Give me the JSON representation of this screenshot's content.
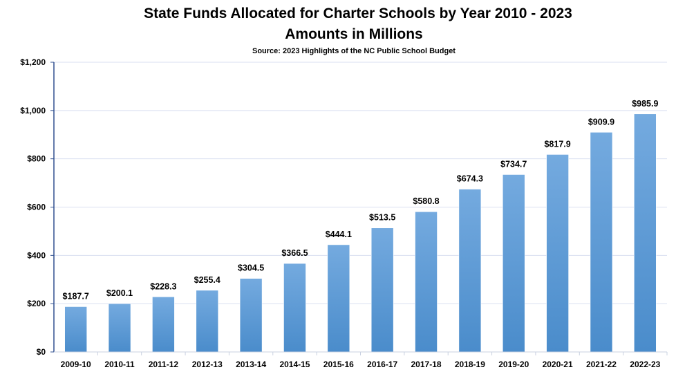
{
  "chart_data": {
    "type": "bar",
    "title": "State Funds Allocated for Charter Schools by Year 2010 - 2023",
    "subtitle": "Amounts in Millions",
    "source": "Source: 2023 Highlights of the NC Public School Budget",
    "xlabel": "",
    "ylabel": "",
    "categories": [
      "2009-10",
      "2010-11",
      "2011-12",
      "2012-13",
      "2013-14",
      "2014-15",
      "2015-16",
      "2016-17",
      "2017-18",
      "2018-19",
      "2019-20",
      "2020-21",
      "2021-22",
      "2022-23"
    ],
    "values": [
      187.7,
      200.1,
      228.3,
      255.4,
      304.5,
      366.5,
      444.1,
      513.5,
      580.8,
      674.3,
      734.7,
      817.9,
      909.9,
      985.9
    ],
    "data_labels": [
      "$187.7",
      "$200.1",
      "$228.3",
      "$255.4",
      "$304.5",
      "$366.5",
      "$444.1",
      "$513.5",
      "$580.8",
      "$674.3",
      "$734.7",
      "$817.9",
      "$909.9",
      "$985.9"
    ],
    "ylim": [
      0,
      1200
    ],
    "yticks": [
      0,
      200,
      400,
      600,
      800,
      1000,
      1200
    ],
    "ytick_labels": [
      "$0",
      "$200",
      "$400",
      "$600",
      "$800",
      "$1,000",
      "$1,200"
    ],
    "grid": true,
    "colors": {
      "bar_top": "#74aadf",
      "bar_bottom": "#4a8ccb",
      "axis": "#2f4f8f",
      "grid": "#d9dff0"
    }
  }
}
